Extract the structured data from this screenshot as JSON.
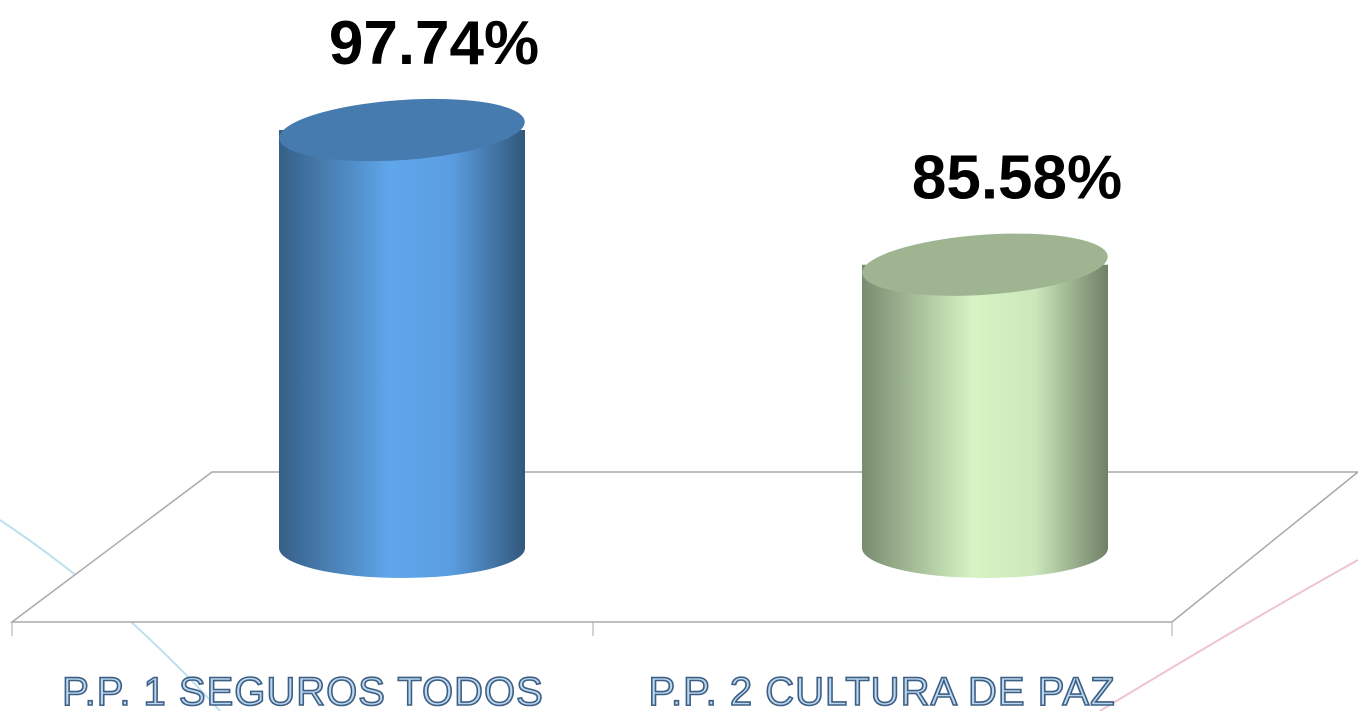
{
  "chart_data": {
    "type": "cylinder",
    "categories": [
      "P.P. 1 SEGUROS TODOS",
      "P.P. 2 CULTURA DE PAZ"
    ],
    "values": [
      97.74,
      85.58
    ],
    "value_labels": [
      "97.74%",
      "85.58%"
    ],
    "colors": [
      "#5a9ee0",
      "#cce8bb"
    ],
    "ylim": [
      60,
      100
    ]
  }
}
